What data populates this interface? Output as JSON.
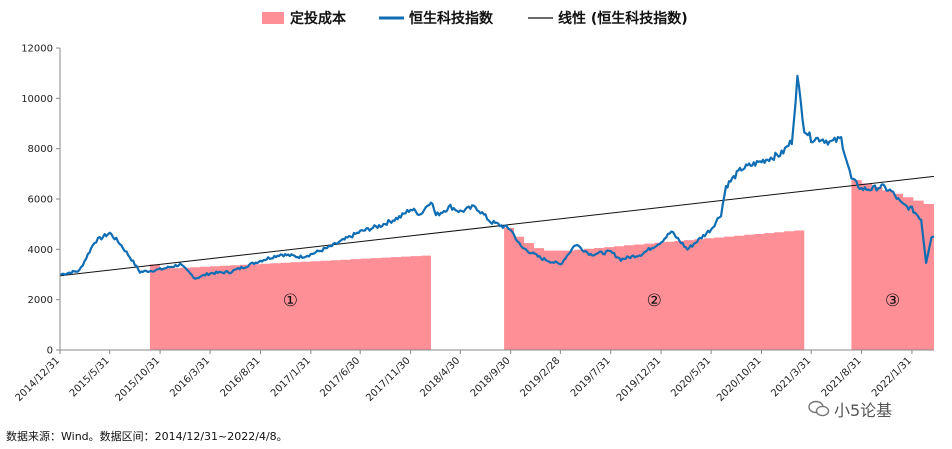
{
  "chart_data": {
    "type": "area",
    "legend_placement": "top",
    "grid": false,
    "series": [
      {
        "name": "定投成本",
        "kind": "area",
        "color": "#ff8f96"
      },
      {
        "name": "恒生科技指数",
        "kind": "line",
        "color": "#0f6db3"
      },
      {
        "name": "线性 (恒生科技指数)",
        "kind": "line",
        "color": "#111111"
      }
    ],
    "y": {
      "min": 0,
      "max": 12000,
      "ticks": [
        0,
        2000,
        4000,
        6000,
        8000,
        10000,
        12000
      ],
      "tick_labels": [
        "0",
        "2000",
        "4000",
        "6000",
        "8000",
        "10000",
        "12000"
      ]
    },
    "x": {
      "start": "2014/12/31",
      "end": "2022/4/8",
      "tick_labels": [
        "2014/12/31",
        "2015/5/31",
        "2015/10/31",
        "2016/3/31",
        "2016/8/31",
        "2017/1/31",
        "2017/6/30",
        "2017/11/30",
        "2018/4/30",
        "2018/9/30",
        "2019/2/28",
        "2019/7/31",
        "2019/12/31",
        "2020/5/31",
        "2020/10/31",
        "2021/3/31",
        "2021/8/31",
        "2022/1/31"
      ]
    },
    "index_points": [
      [
        "2014/12/31",
        3000
      ],
      [
        "2015/2/28",
        3150
      ],
      [
        "2015/4/15",
        4300
      ],
      [
        "2015/5/31",
        4650
      ],
      [
        "2015/6/30",
        4250
      ],
      [
        "2015/7/31",
        3700
      ],
      [
        "2015/8/31",
        3100
      ],
      [
        "2015/10/31",
        3200
      ],
      [
        "2015/12/31",
        3400
      ],
      [
        "2016/2/15",
        2850
      ],
      [
        "2016/3/31",
        3050
      ],
      [
        "2016/5/31",
        3100
      ],
      [
        "2016/8/31",
        3550
      ],
      [
        "2016/10/31",
        3800
      ],
      [
        "2016/12/31",
        3700
      ],
      [
        "2017/1/31",
        3800
      ],
      [
        "2017/3/31",
        4100
      ],
      [
        "2017/6/30",
        4700
      ],
      [
        "2017/8/31",
        4950
      ],
      [
        "2017/10/31",
        5300
      ],
      [
        "2017/11/30",
        5600
      ],
      [
        "2017/12/31",
        5400
      ],
      [
        "2018/1/31",
        5950
      ],
      [
        "2018/2/15",
        5350
      ],
      [
        "2018/3/31",
        5700
      ],
      [
        "2018/4/30",
        5500
      ],
      [
        "2018/6/15",
        5700
      ],
      [
        "2018/7/31",
        5100
      ],
      [
        "2018/9/30",
        4800
      ],
      [
        "2018/10/31",
        4100
      ],
      [
        "2018/12/31",
        3650
      ],
      [
        "2019/2/28",
        3400
      ],
      [
        "2019/4/15",
        4200
      ],
      [
        "2019/5/31",
        3800
      ],
      [
        "2019/7/31",
        3900
      ],
      [
        "2019/8/31",
        3600
      ],
      [
        "2019/10/31",
        3800
      ],
      [
        "2019/12/31",
        4300
      ],
      [
        "2020/1/31",
        4700
      ],
      [
        "2020/3/20",
        4000
      ],
      [
        "2020/5/31",
        4800
      ],
      [
        "2020/6/30",
        5400
      ],
      [
        "2020/7/15",
        6500
      ],
      [
        "2020/8/31",
        7200
      ],
      [
        "2020/10/31",
        7500
      ],
      [
        "2020/12/31",
        7800
      ],
      [
        "2021/1/31",
        8300
      ],
      [
        "2021/2/17",
        10800
      ],
      [
        "2021/3/10",
        8800
      ],
      [
        "2021/3/31",
        8400
      ],
      [
        "2021/4/30",
        8400
      ],
      [
        "2021/5/31",
        8250
      ],
      [
        "2021/6/30",
        8400
      ],
      [
        "2021/7/31",
        6800
      ],
      [
        "2021/8/31",
        6400
      ],
      [
        "2021/9/30",
        6400
      ],
      [
        "2021/10/31",
        6500
      ],
      [
        "2021/11/30",
        6300
      ],
      [
        "2021/12/31",
        5800
      ],
      [
        "2022/1/31",
        5600
      ],
      [
        "2022/2/28",
        5200
      ],
      [
        "2022/3/15",
        3500
      ],
      [
        "2022/3/31",
        4500
      ],
      [
        "2022/4/8",
        4500
      ]
    ],
    "trendline": [
      [
        "2014/12/31",
        2950
      ],
      [
        "2022/4/8",
        6900
      ]
    ],
    "cost_segments": [
      {
        "label": "①",
        "start": "2015/9/30",
        "end": "2018/1/31",
        "start_value": 3250,
        "end_value": 3750,
        "start_shape": [
          3400,
          3250
        ]
      },
      {
        "label": "②",
        "start": "2018/9/10",
        "end": "2021/3/10",
        "start_value": 4850,
        "end_value": 4750,
        "start_shape": [
          4850,
          4500,
          4250,
          4050,
          3950,
          3950
        ]
      },
      {
        "label": "③",
        "start": "2021/7/31",
        "end": "2022/4/8",
        "start_value": 6750,
        "end_value": 5800,
        "start_shape": []
      }
    ]
  },
  "footer": {
    "source": "数据来源：Wind。数据区间：2014/12/31~2022/4/8。",
    "watermark": "小5论基"
  }
}
